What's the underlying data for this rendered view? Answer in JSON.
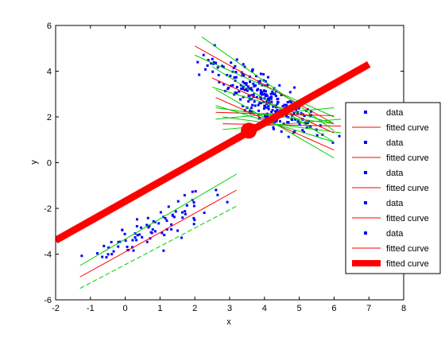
{
  "chart_data": {
    "type": "scatter",
    "xlabel": "x",
    "ylabel": "y",
    "xlim": [
      -2,
      8
    ],
    "ylim": [
      -6,
      6
    ],
    "xticks": [
      "-2",
      "-1",
      "0",
      "1",
      "2",
      "3",
      "4",
      "5",
      "6",
      "7",
      "8"
    ],
    "yticks": [
      "-6",
      "-4",
      "-2",
      "0",
      "2",
      "4",
      "6"
    ],
    "grid": false,
    "legend_position": "right",
    "legend": [
      {
        "label": "data",
        "style": "marker",
        "color": "#0000ff"
      },
      {
        "label": "fitted curve",
        "style": "line",
        "color": "#ff0000"
      },
      {
        "label": "data",
        "style": "marker",
        "color": "#0000ff"
      },
      {
        "label": "fitted curve",
        "style": "line",
        "color": "#ff0000"
      },
      {
        "label": "data",
        "style": "marker",
        "color": "#0000ff"
      },
      {
        "label": "fitted curve",
        "style": "line",
        "color": "#ff0000"
      },
      {
        "label": "data",
        "style": "marker",
        "color": "#0000ff"
      },
      {
        "label": "fitted curve",
        "style": "line",
        "color": "#ff0000"
      },
      {
        "label": "data",
        "style": "marker",
        "color": "#0000ff"
      },
      {
        "label": "fitted curve",
        "style": "line",
        "color": "#ff0000"
      },
      {
        "label": "fitted curve",
        "style": "thick",
        "color": "#ff0000"
      }
    ],
    "clusters": [
      {
        "x_range": [
          -1.4,
          3.0
        ],
        "y_range": [
          -4.3,
          -0.8
        ],
        "slope": 0.85,
        "center": [
          0.8,
          -3.0
        ]
      },
      {
        "x_range": [
          2.0,
          6.3
        ],
        "y_range": [
          0.0,
          5.8
        ],
        "slope": -0.9,
        "center": [
          4.0,
          2.8
        ]
      }
    ],
    "fit_lines": [
      {
        "x": [
          -1.3,
          3.2
        ],
        "y": [
          -5.0,
          -1.2
        ],
        "color": "#ff0000"
      },
      {
        "x": [
          -1.3,
          3.2
        ],
        "y": [
          -4.5,
          -0.5
        ],
        "color": "#00cc00"
      },
      {
        "x": [
          -1.3,
          3.2
        ],
        "y": [
          -5.5,
          -1.9
        ],
        "color": "#00cc00",
        "dashed": true
      },
      {
        "x": [
          2.0,
          6.0
        ],
        "y": [
          5.1,
          1.7
        ],
        "color": "#ff0000"
      },
      {
        "x": [
          2.0,
          6.0
        ],
        "y": [
          4.7,
          2.0
        ],
        "color": "#00cc00"
      },
      {
        "x": [
          2.2,
          6.0
        ],
        "y": [
          5.5,
          1.4
        ],
        "color": "#00cc00"
      },
      {
        "x": [
          2.5,
          6.0
        ],
        "y": [
          3.7,
          1.3
        ],
        "color": "#ff0000"
      },
      {
        "x": [
          2.5,
          6.0
        ],
        "y": [
          3.3,
          1.7
        ],
        "color": "#00cc00"
      },
      {
        "x": [
          2.5,
          6.0
        ],
        "y": [
          4.2,
          0.9
        ],
        "color": "#00cc00"
      },
      {
        "x": [
          2.6,
          6.0
        ],
        "y": [
          2.2,
          2.05
        ],
        "color": "#ff0000"
      },
      {
        "x": [
          2.6,
          6.0
        ],
        "y": [
          1.9,
          2.4
        ],
        "color": "#00cc00"
      },
      {
        "x": [
          2.6,
          6.0
        ],
        "y": [
          2.4,
          1.7
        ],
        "color": "#00cc00"
      },
      {
        "x": [
          2.8,
          6.2
        ],
        "y": [
          1.7,
          1.6
        ],
        "color": "#ff0000"
      },
      {
        "x": [
          2.8,
          6.2
        ],
        "y": [
          1.45,
          1.9
        ],
        "color": "#00cc00"
      },
      {
        "x": [
          2.8,
          6.2
        ],
        "y": [
          2.0,
          1.3
        ],
        "color": "#00cc00"
      },
      {
        "x": [
          2.6,
          6.0
        ],
        "y": [
          2.85,
          0.55
        ],
        "color": "#ff0000"
      },
      {
        "x": [
          2.6,
          6.0
        ],
        "y": [
          2.5,
          0.9
        ],
        "color": "#00cc00"
      },
      {
        "x": [
          2.6,
          6.0
        ],
        "y": [
          3.2,
          0.2
        ],
        "color": "#00cc00"
      }
    ],
    "global_fit": {
      "x": [
        -2,
        7
      ],
      "y": [
        -3.4,
        4.3
      ],
      "color": "#ff0000"
    },
    "global_center": {
      "x": 3.55,
      "y": 1.4,
      "color": "#ff0000"
    },
    "colors": {
      "data": "#0000ff",
      "fit": "#ff0000",
      "ci": "#00cc00"
    }
  }
}
